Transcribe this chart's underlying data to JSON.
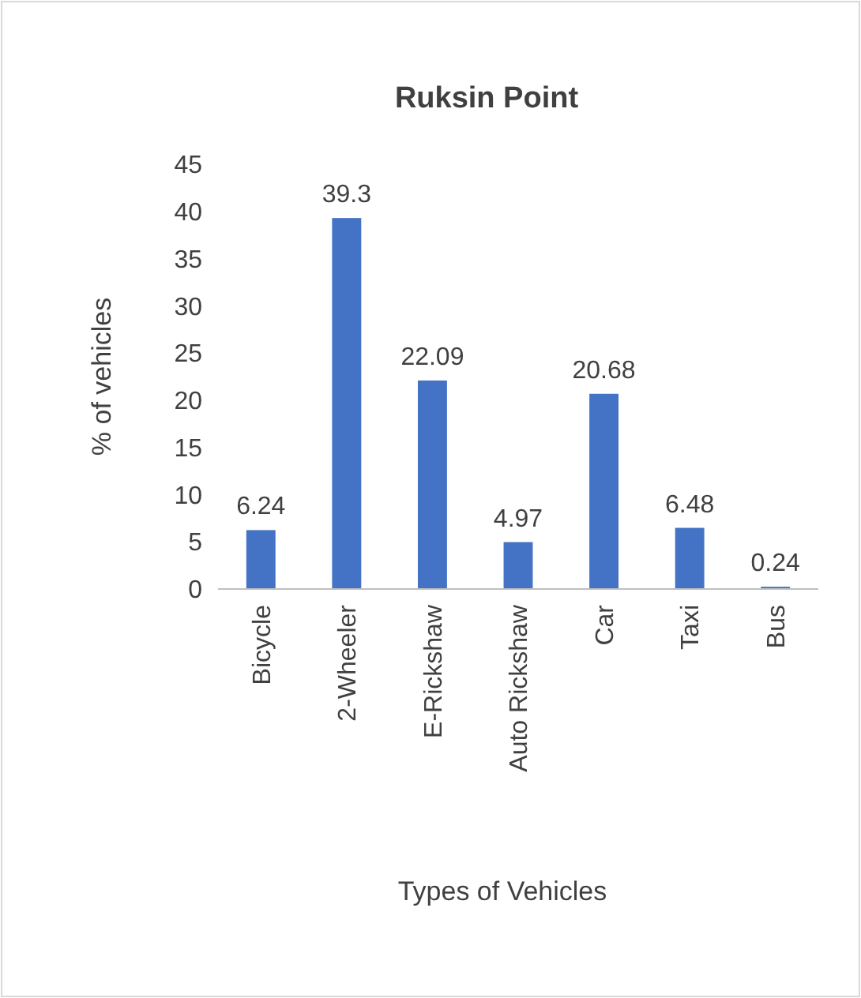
{
  "chart_data": {
    "type": "bar",
    "title": "Ruksin Point",
    "xlabel": "Types of Vehicles",
    "ylabel": "% of vehicles",
    "categories": [
      "Bicycle",
      "2-Wheeler",
      "E-Rickshaw",
      "Auto Rickshaw",
      "Car",
      "Taxi",
      "Bus"
    ],
    "values": [
      6.24,
      39.3,
      22.09,
      4.97,
      20.68,
      6.48,
      0.24
    ],
    "color": "#4472c4",
    "ylim": [
      0,
      45
    ],
    "yticks": [
      0,
      5,
      10,
      15,
      20,
      25,
      30,
      35,
      40,
      45
    ],
    "grid": false,
    "data_labels": true
  }
}
